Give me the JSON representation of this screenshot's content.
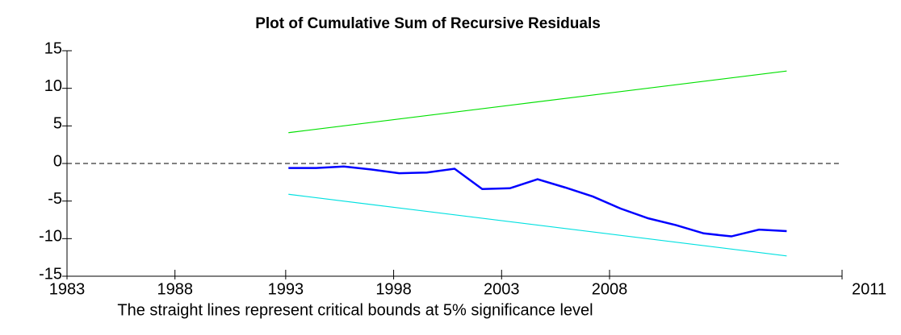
{
  "chart_data": {
    "type": "line",
    "title": "Plot of Cumulative Sum of Recursive Residuals",
    "caption": "The straight lines represent critical bounds at 5% significance level",
    "xlim": [
      1985,
      2013
    ],
    "xticks": [
      {
        "value": 1985,
        "label": "1983"
      },
      {
        "value": 1988.9,
        "label": "1988"
      },
      {
        "value": 1992.9,
        "label": "1993"
      },
      {
        "value": 1996.8,
        "label": "1998"
      },
      {
        "value": 2000.7,
        "label": "2003"
      },
      {
        "value": 2004.6,
        "label": "2008"
      },
      {
        "value": 2013,
        "label": "2011"
      }
    ],
    "ylim": [
      -15,
      15
    ],
    "yticks": [
      -15,
      -10,
      -5,
      0,
      5,
      10,
      15
    ],
    "series": [
      {
        "color": "#00e000",
        "x": [
          1993,
          2011
        ],
        "values": [
          4.1,
          12.3
        ]
      },
      {
        "color": "#00e0e0",
        "x": [
          1993,
          2011
        ],
        "values": [
          -4.1,
          -12.3
        ]
      },
      {
        "color": "#0000ff",
        "x": [
          1993,
          1994,
          1995,
          1996,
          1997,
          1998,
          1999,
          2000,
          2001,
          2002,
          2003,
          2004,
          2005,
          2006,
          2007,
          2008,
          2009,
          2010,
          2011
        ],
        "values": [
          -0.6,
          -0.6,
          -0.4,
          -0.8,
          -1.3,
          -1.2,
          -0.7,
          -3.4,
          -3.3,
          -2.1,
          -3.2,
          -4.4,
          -6.0,
          -7.3,
          -8.2,
          -9.3,
          -9.7,
          -8.8,
          -9.0
        ]
      }
    ]
  }
}
